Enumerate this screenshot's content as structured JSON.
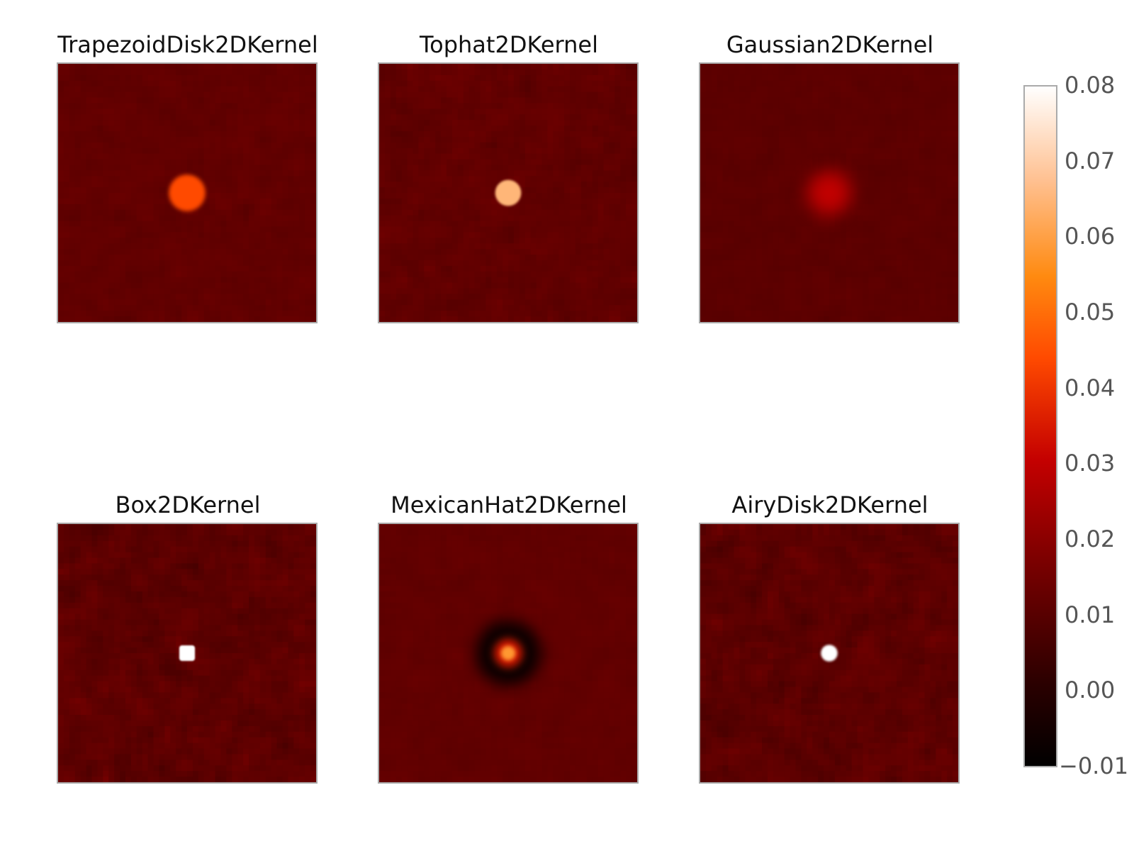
{
  "chart_data": {
    "type": "heatmap",
    "colormap": "gist_heat",
    "colorbar": {
      "range": [
        -0.01,
        0.08
      ],
      "ticks": [
        "−0.01",
        "0.00",
        "0.01",
        "0.02",
        "0.03",
        "0.04",
        "0.05",
        "0.06",
        "0.07",
        "0.08"
      ],
      "tick_values": [
        -0.01,
        0.0,
        0.01,
        0.02,
        0.03,
        0.04,
        0.05,
        0.06,
        0.07,
        0.08
      ]
    },
    "panels": [
      {
        "title": "TrapezoidDisk2DKernel",
        "background": 0.012,
        "noise": 0.003,
        "peak": 0.044,
        "spot": "disk-soft",
        "spot_size": 0.07
      },
      {
        "title": "Tophat2DKernel",
        "background": 0.012,
        "noise": 0.004,
        "peak": 0.065,
        "spot": "disk",
        "spot_size": 0.05
      },
      {
        "title": "Gaussian2DKernel",
        "background": 0.011,
        "noise": 0.002,
        "peak": 0.03,
        "spot": "gaussian",
        "spot_size": 0.11
      },
      {
        "title": "Box2DKernel",
        "background": 0.011,
        "noise": 0.006,
        "peak": 0.08,
        "spot": "square",
        "spot_size": 0.03
      },
      {
        "title": "MexicanHat2DKernel",
        "background": 0.012,
        "noise": 0.002,
        "peak": 0.058,
        "spot": "ring",
        "spot_size": 0.1
      },
      {
        "title": "AiryDisk2DKernel",
        "background": 0.011,
        "noise": 0.006,
        "peak": 0.08,
        "spot": "disk",
        "spot_size": 0.032
      }
    ]
  },
  "colors": {
    "frame": "#aaaaaa",
    "colorbar_labels": "#555555"
  }
}
